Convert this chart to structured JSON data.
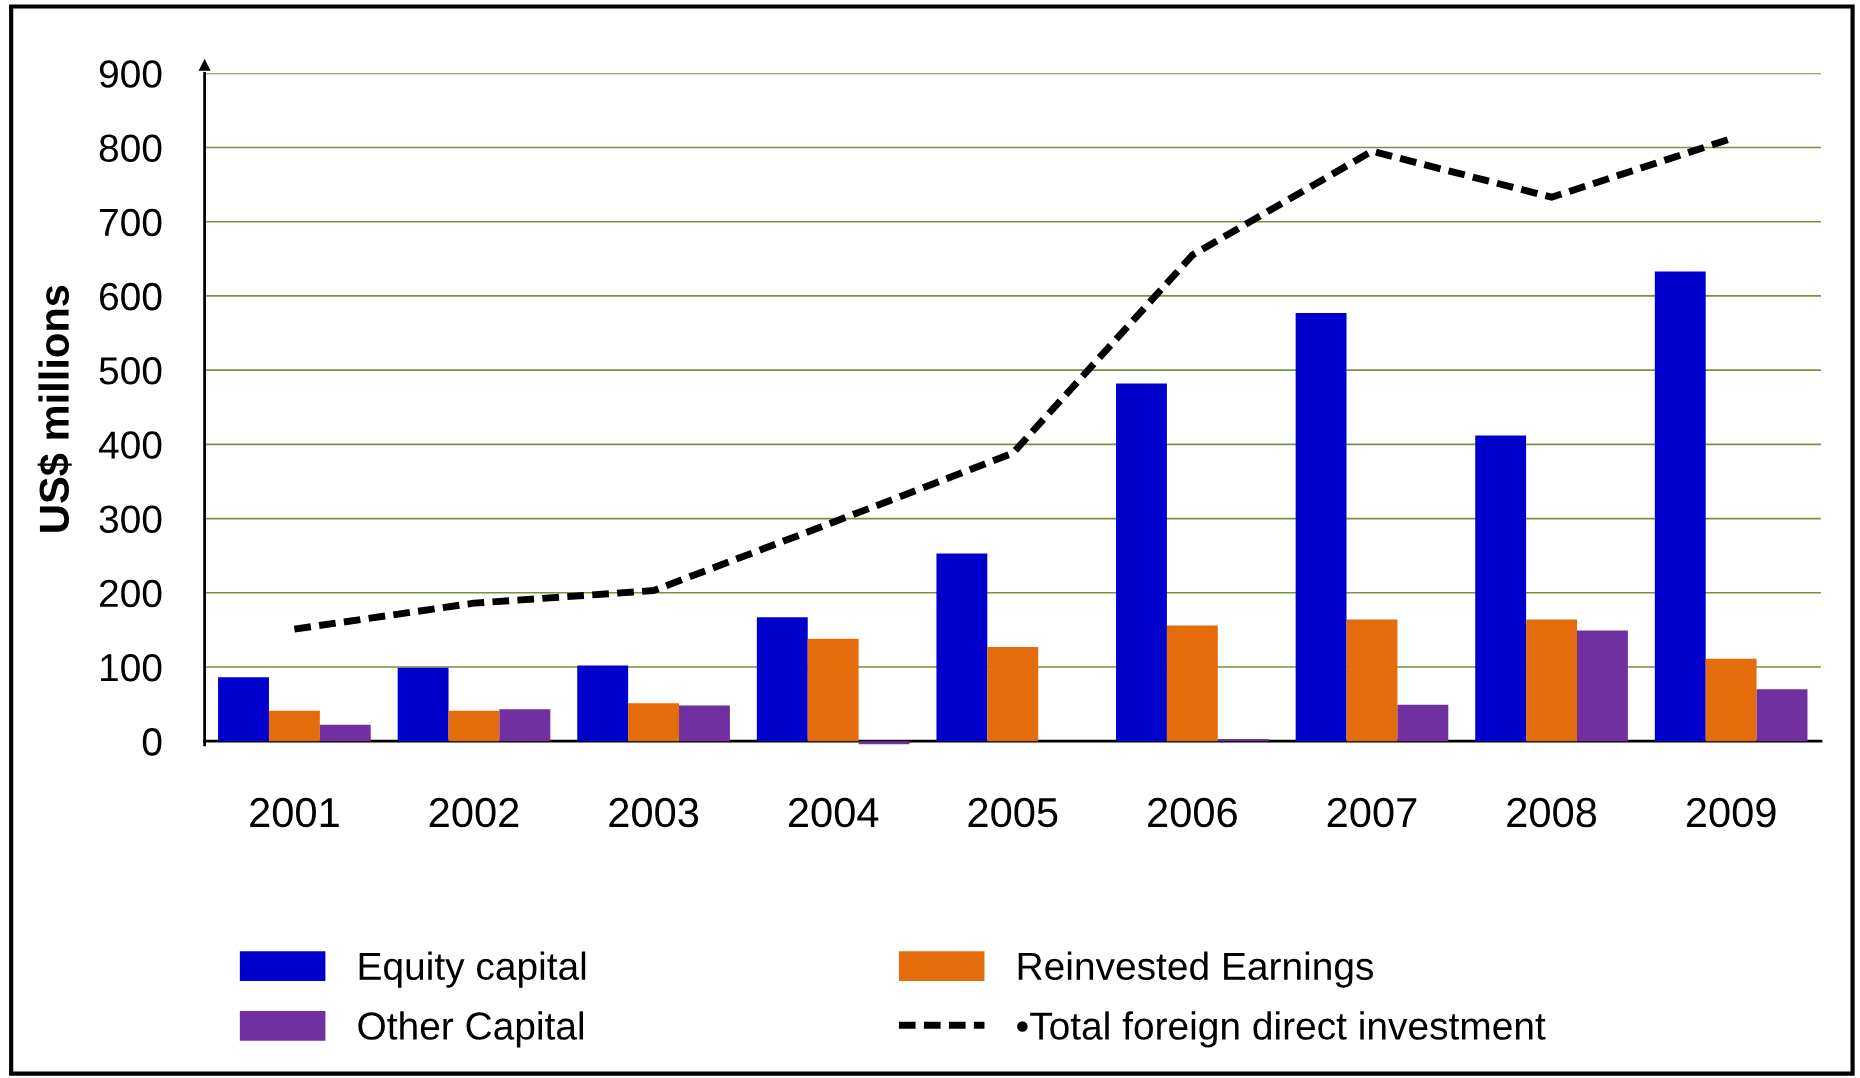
{
  "chart_data": {
    "type": "bar",
    "ylabel": "US$ millions",
    "categories": [
      "2001",
      "2002",
      "2003",
      "2004",
      "2005",
      "2006",
      "2007",
      "2008",
      "2009"
    ],
    "series": [
      {
        "name": "Equity capital",
        "color": "#0000cc",
        "values": [
          86,
          99,
          102,
          167,
          253,
          482,
          577,
          412,
          633
        ]
      },
      {
        "name": "Reinvested Earnings",
        "color": "#e46c0a",
        "values": [
          41,
          41,
          51,
          138,
          127,
          156,
          164,
          164,
          111
        ]
      },
      {
        "name": "Other Capital",
        "color": "#7030a0",
        "values": [
          22,
          43,
          48,
          -4,
          0,
          3,
          49,
          149,
          70
        ]
      },
      {
        "name": "•Total foreign direct investment",
        "type": "line",
        "color": "#000000",
        "line_style": "dashed",
        "marker": "none",
        "values": [
          151,
          186,
          203,
          295,
          388,
          655,
          795,
          733,
          812
        ]
      }
    ],
    "ylim": [
      -5,
      900
    ],
    "yticks": [
      0,
      100,
      200,
      300,
      400,
      500,
      600,
      700,
      800,
      900
    ],
    "grid": "y",
    "legend": "bottom"
  }
}
